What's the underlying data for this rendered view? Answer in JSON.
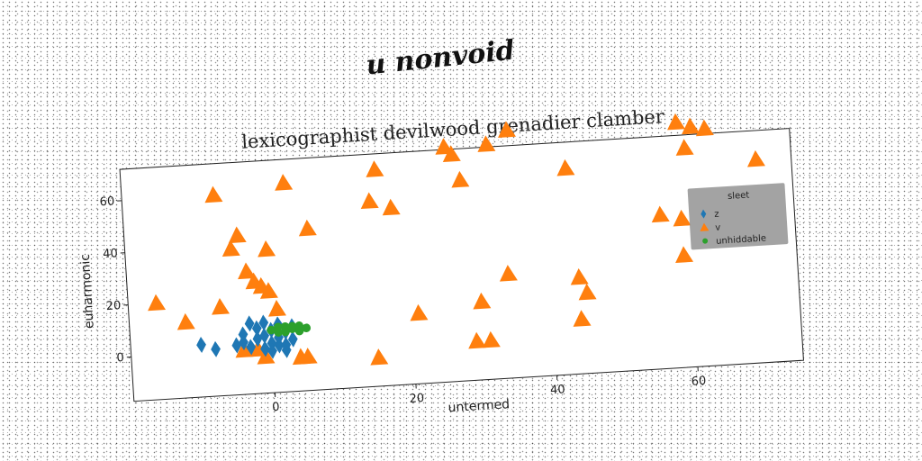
{
  "figure": {
    "supertitle": "u nonvoid"
  },
  "chart_data": {
    "type": "scatter",
    "title": "lexicographist devilwood grenadier clamber",
    "xlabel": "untermed",
    "ylabel": "euharmonic",
    "xlim": [
      -20,
      75
    ],
    "ylim": [
      -17,
      72
    ],
    "xticks": [
      0,
      20,
      40,
      60
    ],
    "yticks": [
      0,
      20,
      40,
      60
    ],
    "grid": false,
    "legend": {
      "title": "sleet",
      "placement": "right",
      "background": "#999999",
      "entries": [
        "z",
        "v",
        "unhiddable"
      ]
    },
    "series": [
      {
        "name": "z",
        "marker": "diamond",
        "color": "#1f77b4",
        "points": [
          [
            -10,
            3
          ],
          [
            -8,
            1
          ],
          [
            -5,
            2
          ],
          [
            -4,
            6
          ],
          [
            -3,
            10
          ],
          [
            -2,
            4
          ],
          [
            -2,
            8
          ],
          [
            -1,
            5
          ],
          [
            -1,
            0
          ],
          [
            0,
            7
          ],
          [
            0,
            2
          ],
          [
            1,
            4
          ],
          [
            1,
            9
          ],
          [
            2,
            6
          ],
          [
            2,
            -1
          ],
          [
            3,
            3
          ],
          [
            3,
            8
          ],
          [
            -3,
            1
          ],
          [
            -1,
            10
          ],
          [
            0,
            -1
          ],
          [
            1,
            1
          ],
          [
            2,
            1
          ],
          [
            -4,
            3
          ]
        ]
      },
      {
        "name": "v",
        "marker": "triangle",
        "color": "#ff7f0e",
        "points": [
          [
            -16,
            20
          ],
          [
            -12,
            12
          ],
          [
            -7,
            60
          ],
          [
            -7,
            17
          ],
          [
            -5,
            39
          ],
          [
            -4,
            44
          ],
          [
            -4,
            0
          ],
          [
            -3,
            30
          ],
          [
            -2,
            0
          ],
          [
            -2,
            26
          ],
          [
            -1,
            24
          ],
          [
            -1,
            -3
          ],
          [
            0,
            22
          ],
          [
            0,
            38
          ],
          [
            1,
            15
          ],
          [
            3,
            63
          ],
          [
            4,
            -4
          ],
          [
            5,
            -4
          ],
          [
            6,
            45
          ],
          [
            15,
            -6
          ],
          [
            15,
            54
          ],
          [
            16,
            66
          ],
          [
            18,
            51
          ],
          [
            21,
            10
          ],
          [
            26,
            73
          ],
          [
            27,
            70
          ],
          [
            28,
            60
          ],
          [
            29,
            -2
          ],
          [
            30,
            13
          ],
          [
            31,
            -2
          ],
          [
            32,
            73
          ],
          [
            34,
            23
          ],
          [
            35,
            78
          ],
          [
            43,
            62
          ],
          [
            44,
            20
          ],
          [
            44,
            4
          ],
          [
            45,
            14
          ],
          [
            56,
            42
          ],
          [
            59,
            40
          ],
          [
            59,
            26
          ],
          [
            59,
            77
          ],
          [
            60,
            67
          ],
          [
            61,
            75
          ],
          [
            63,
            74
          ],
          [
            70,
            61
          ]
        ]
      },
      {
        "name": "unhiddable",
        "marker": "circle",
        "color": "#2ca02c",
        "points": [
          [
            0,
            7
          ],
          [
            1,
            6
          ],
          [
            2,
            8
          ],
          [
            3,
            7
          ],
          [
            4,
            8
          ],
          [
            5,
            7
          ],
          [
            1,
            8
          ],
          [
            2,
            6
          ],
          [
            3,
            8
          ],
          [
            4,
            6
          ]
        ]
      }
    ]
  }
}
